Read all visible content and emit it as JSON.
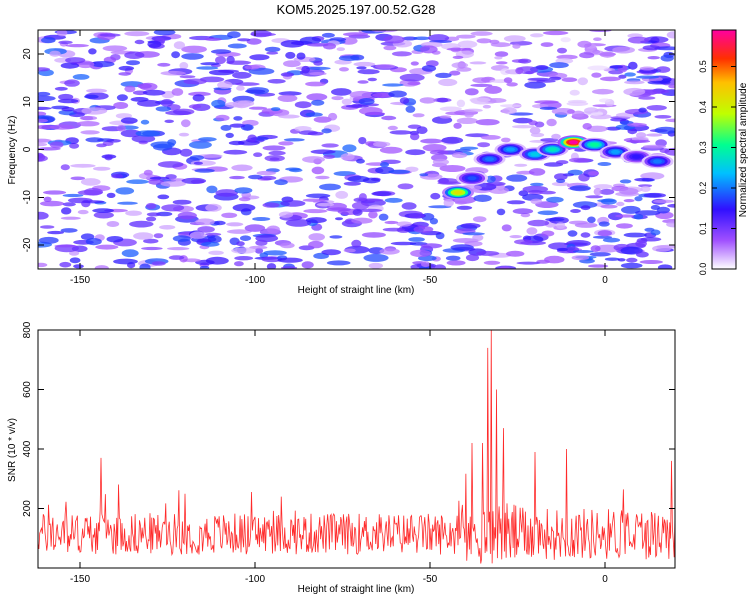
{
  "chart_data": [
    {
      "type": "heatmap",
      "title": "KOM5.2025.197.00.52.G28",
      "xlabel": "Height of straight line (km)",
      "ylabel": "Frequency (Hz)",
      "xlim": [
        -162,
        20
      ],
      "ylim": [
        -25,
        25
      ],
      "xticks": [
        -150,
        -100,
        -50,
        0
      ],
      "yticks": [
        -20,
        -10,
        0,
        10,
        20
      ],
      "colorbar": {
        "label": "Normalized spectral amplitude",
        "range": [
          0,
          0.59
        ],
        "ticks": [
          0.0,
          0.1,
          0.2,
          0.3,
          0.4,
          0.5
        ],
        "stops": [
          "#ffffff",
          "#a050ff",
          "#3010ff",
          "#00c0ff",
          "#00ff90",
          "#c0ff00",
          "#ffc000",
          "#ff3000",
          "#ff00a0"
        ]
      },
      "ridge": [
        {
          "x": -42,
          "y": -9,
          "amp": 0.42
        },
        {
          "x": -38,
          "y": -6,
          "amp": 0.18
        },
        {
          "x": -33,
          "y": -2,
          "amp": 0.2
        },
        {
          "x": -27,
          "y": 0,
          "amp": 0.22
        },
        {
          "x": -20,
          "y": -1,
          "amp": 0.25
        },
        {
          "x": -15,
          "y": 0,
          "amp": 0.28
        },
        {
          "x": -9,
          "y": 1.5,
          "amp": 0.59
        },
        {
          "x": -3,
          "y": 1,
          "amp": 0.3
        },
        {
          "x": 3,
          "y": -0.5,
          "amp": 0.22
        },
        {
          "x": 9,
          "y": -1.5,
          "amp": 0.15
        },
        {
          "x": 15,
          "y": -2.5,
          "amp": 0.2
        }
      ]
    },
    {
      "type": "line",
      "xlabel": "Height of straight line (km)",
      "ylabel": "SNR (10 * v/v)",
      "xlim": [
        -162,
        20
      ],
      "ylim": [
        0,
        800
      ],
      "xticks": [
        -150,
        -100,
        -50,
        0
      ],
      "yticks": [
        200,
        400,
        600,
        800
      ],
      "color": "#ff2a2a",
      "x_step": 0.25,
      "noise_baseline": 115,
      "noise_spread": 70,
      "spikes": [
        {
          "x": -144,
          "y": 370
        },
        {
          "x": -32.5,
          "y": 800
        },
        {
          "x": -33.5,
          "y": 740
        },
        {
          "x": -31,
          "y": 600
        },
        {
          "x": -35,
          "y": 420
        },
        {
          "x": -38,
          "y": 420
        },
        {
          "x": -29,
          "y": 470
        },
        {
          "x": -20,
          "y": 390
        },
        {
          "x": -11,
          "y": 400
        },
        {
          "x": 19,
          "y": 360
        }
      ]
    }
  ]
}
